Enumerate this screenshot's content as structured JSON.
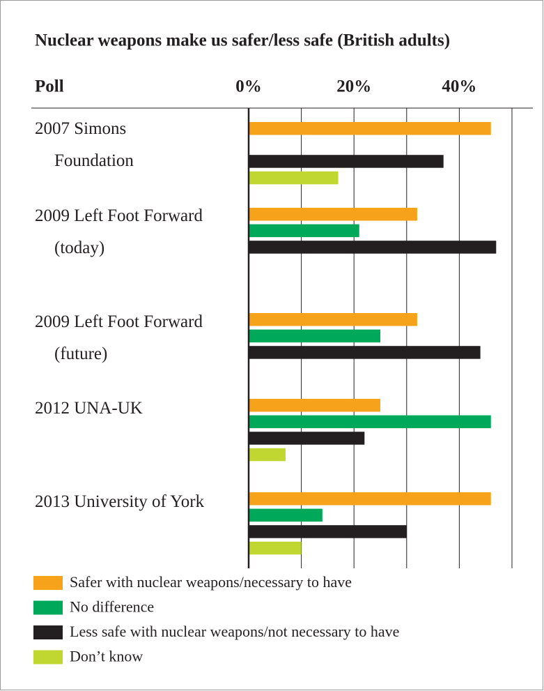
{
  "chart_data": {
    "type": "bar",
    "orientation": "horizontal",
    "title": "Nuclear weapons make us safer/less safe (British adults)",
    "category_header": "Poll",
    "categories": [
      "2007 Simons\nFoundation",
      "2009 Left Foot Forward\n(today)",
      "2009 Left Foot Forward\n(future)",
      "2012 UNA-UK",
      "2013 University of York"
    ],
    "series": [
      {
        "name": "Safer with nuclear weapons/necessary to have",
        "color": "#f7a21b",
        "values": [
          46,
          32,
          32,
          25,
          46
        ]
      },
      {
        "name": "No difference",
        "color": "#00a85a",
        "values": [
          null,
          21,
          25,
          46,
          14
        ]
      },
      {
        "name": "Less safe with nuclear weapons/not necessary to have",
        "color": "#231f20",
        "values": [
          37,
          47,
          44,
          22,
          30
        ]
      },
      {
        "name": "Don’t know",
        "color": "#bfd730",
        "values": [
          17,
          null,
          null,
          7,
          10
        ]
      }
    ],
    "xlim": [
      0,
      50
    ],
    "xticks": [
      {
        "value": 0,
        "label": "0%"
      },
      {
        "value": 20,
        "label": "20%"
      },
      {
        "value": 40,
        "label": "40%"
      }
    ],
    "minor_xticks": [
      10,
      30,
      50
    ],
    "grid": true
  }
}
